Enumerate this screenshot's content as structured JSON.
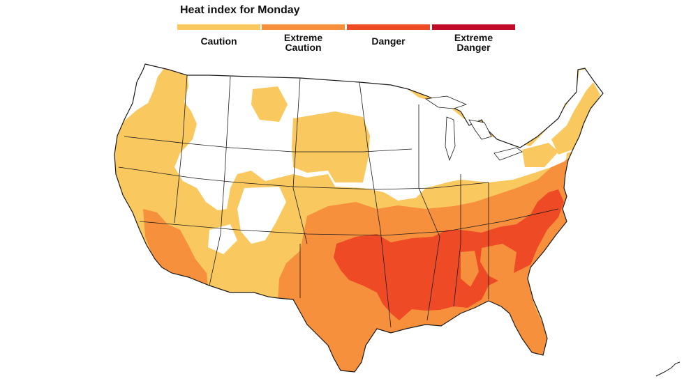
{
  "title": "Heat index for Monday",
  "legend": [
    {
      "label": "Caution",
      "color": "#f9c95f"
    },
    {
      "label": "Extreme\nCaution",
      "color": "#f6903d"
    },
    {
      "label": "Danger",
      "color": "#ee4a25"
    },
    {
      "label": "Extreme\nDanger",
      "color": "#c20a28"
    }
  ],
  "colors": {
    "caution": "#f9c95f",
    "extreme_caution": "#f6903d",
    "danger": "#ee4a25",
    "outline": "#1a1a1a"
  }
}
